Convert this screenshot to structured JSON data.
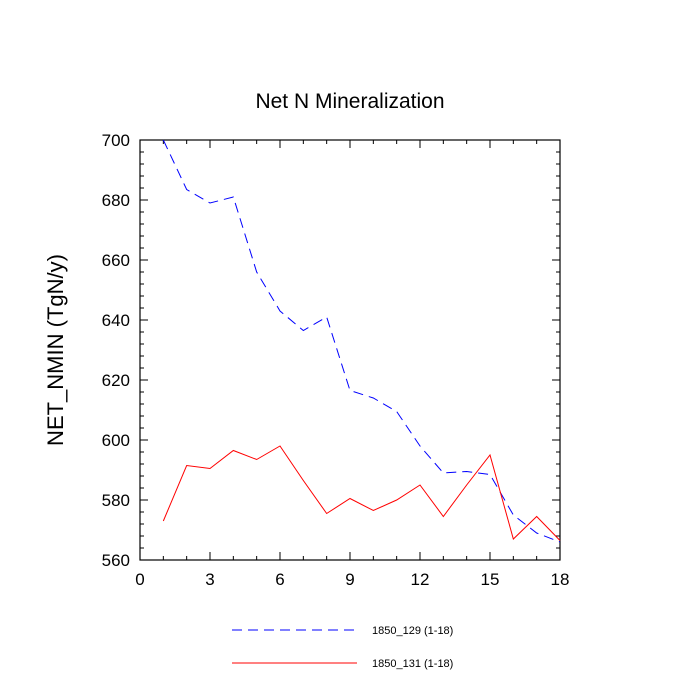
{
  "chart_data": {
    "type": "line",
    "title": "Net N Mineralization",
    "xlabel": "",
    "ylabel": "NET_NMIN  (TgN/y)",
    "xlim": [
      0,
      18
    ],
    "ylim": [
      560,
      700
    ],
    "xticks": [
      0,
      3,
      6,
      9,
      12,
      15,
      18
    ],
    "yticks": [
      560,
      580,
      600,
      620,
      640,
      660,
      680,
      700
    ],
    "x": [
      1,
      2,
      3,
      4,
      5,
      6,
      7,
      8,
      9,
      10,
      11,
      12,
      13,
      14,
      15,
      16,
      17,
      18
    ],
    "series": [
      {
        "name": "1850_129 (1-18)",
        "color": "#0000ff",
        "dash": "dashed",
        "values": [
          700,
          683.5,
          679,
          681,
          656,
          643,
          636.5,
          641,
          616.5,
          614,
          609.5,
          598,
          589,
          589.5,
          588.5,
          575,
          569,
          566
        ]
      },
      {
        "name": "1850_131 (1-18)",
        "color": "#ff0000",
        "dash": "solid",
        "values": [
          573,
          591.5,
          590.5,
          596.5,
          593.5,
          598,
          586.5,
          575.5,
          580.5,
          576.5,
          580,
          585,
          574.5,
          585,
          595,
          567,
          574.5,
          566.5
        ]
      }
    ]
  }
}
